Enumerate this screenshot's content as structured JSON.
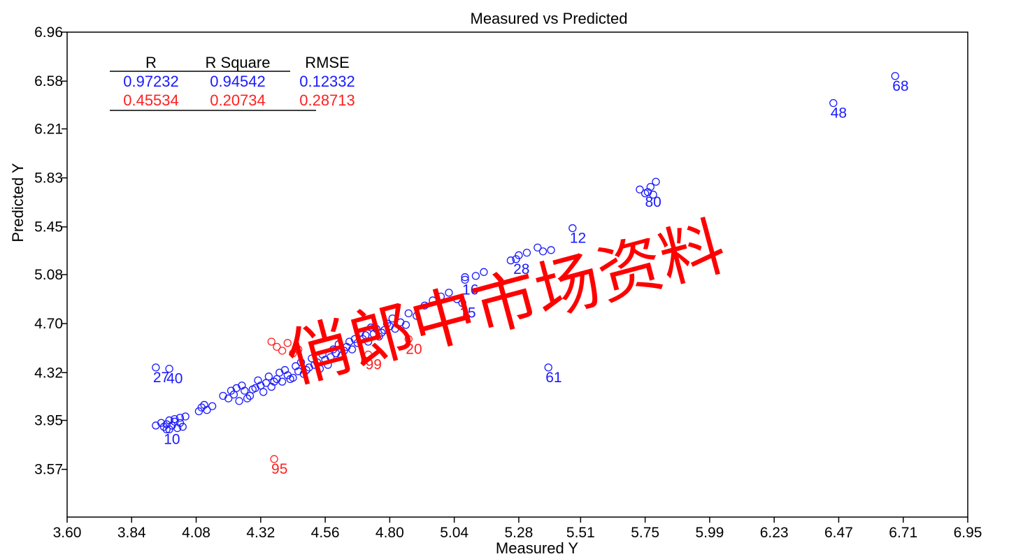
{
  "chart_data": {
    "type": "scatter",
    "title": "Measured vs Predicted",
    "xlabel": "Measured Y",
    "ylabel": "Predicted Y",
    "xlim": [
      3.6,
      6.95
    ],
    "ylim": [
      3.2,
      6.96
    ],
    "x_ticks": [
      "3.60",
      "3.84",
      "4.08",
      "4.32",
      "4.56",
      "4.80",
      "5.04",
      "5.28",
      "5.51",
      "5.75",
      "5.99",
      "6.23",
      "6.47",
      "6.71",
      "6.95"
    ],
    "y_ticks": [
      "6.96",
      "6.58",
      "6.21",
      "5.83",
      "5.45",
      "5.08",
      "4.70",
      "4.32",
      "3.95",
      "3.57"
    ],
    "stats_table": {
      "headers": [
        "R",
        "R Square",
        "RMSE"
      ],
      "rows": [
        {
          "values": [
            "0.97232",
            "0.94542",
            "0.12332"
          ],
          "color": "#1a1aff"
        },
        {
          "values": [
            "0.45534",
            "0.20734",
            "0.28713"
          ],
          "color": "#ff2020"
        }
      ]
    },
    "series": [
      {
        "color": "#1a1aff",
        "labeled_points": [
          {
            "label": "68",
            "x": 6.68,
            "y": 6.62
          },
          {
            "label": "48",
            "x": 6.45,
            "y": 6.41
          },
          {
            "label": "61",
            "x": 5.39,
            "y": 4.36
          },
          {
            "label": "27",
            "x": 3.93,
            "y": 4.36
          },
          {
            "label": "40",
            "x": 3.98,
            "y": 4.35
          },
          {
            "label": "15",
            "x": 5.07,
            "y": 4.86
          },
          {
            "label": "12",
            "x": 5.48,
            "y": 5.44
          },
          {
            "label": "80",
            "x": 5.76,
            "y": 5.72
          },
          {
            "label": "16",
            "x": 5.08,
            "y": 5.04
          },
          {
            "label": "28",
            "x": 5.27,
            "y": 5.2
          },
          {
            "label": "10",
            "x": 3.97,
            "y": 3.88
          }
        ],
        "points": [
          [
            3.93,
            3.91
          ],
          [
            3.95,
            3.93
          ],
          [
            3.96,
            3.9
          ],
          [
            3.97,
            3.92
          ],
          [
            3.98,
            3.95
          ],
          [
            3.99,
            3.91
          ],
          [
            4.0,
            3.96
          ],
          [
            4.01,
            3.89
          ],
          [
            4.02,
            3.93
          ],
          [
            4.03,
            3.9
          ],
          [
            4.04,
            3.98
          ],
          [
            3.98,
            3.88
          ],
          [
            4.0,
            3.94
          ],
          [
            4.02,
            3.97
          ],
          [
            4.09,
            4.02
          ],
          [
            4.1,
            4.05
          ],
          [
            4.12,
            4.03
          ],
          [
            4.14,
            4.06
          ],
          [
            4.11,
            4.07
          ],
          [
            4.2,
            4.12
          ],
          [
            4.22,
            4.15
          ],
          [
            4.24,
            4.1
          ],
          [
            4.26,
            4.18
          ],
          [
            4.28,
            4.14
          ],
          [
            4.3,
            4.2
          ],
          [
            4.32,
            4.22
          ],
          [
            4.33,
            4.17
          ],
          [
            4.34,
            4.24
          ],
          [
            4.36,
            4.21
          ],
          [
            4.38,
            4.27
          ],
          [
            4.4,
            4.25
          ],
          [
            4.42,
            4.3
          ],
          [
            4.44,
            4.28
          ],
          [
            4.46,
            4.33
          ],
          [
            4.48,
            4.31
          ],
          [
            4.5,
            4.36
          ],
          [
            4.52,
            4.38
          ],
          [
            4.54,
            4.35
          ],
          [
            4.56,
            4.42
          ],
          [
            4.58,
            4.44
          ],
          [
            4.6,
            4.47
          ],
          [
            4.62,
            4.45
          ],
          [
            4.64,
            4.52
          ],
          [
            4.66,
            4.5
          ],
          [
            4.68,
            4.55
          ],
          [
            4.7,
            4.58
          ],
          [
            4.72,
            4.56
          ],
          [
            4.74,
            4.62
          ],
          [
            4.76,
            4.6
          ],
          [
            4.78,
            4.65
          ],
          [
            4.8,
            4.68
          ],
          [
            4.82,
            4.66
          ],
          [
            4.84,
            4.71
          ],
          [
            4.86,
            4.69
          ],
          [
            4.25,
            4.22
          ],
          [
            4.29,
            4.19
          ],
          [
            4.31,
            4.26
          ],
          [
            4.35,
            4.29
          ],
          [
            4.37,
            4.25
          ],
          [
            4.41,
            4.34
          ],
          [
            4.43,
            4.27
          ],
          [
            4.45,
            4.37
          ],
          [
            4.47,
            4.4
          ],
          [
            4.49,
            4.34
          ],
          [
            4.51,
            4.43
          ],
          [
            4.55,
            4.46
          ],
          [
            4.59,
            4.5
          ],
          [
            4.63,
            4.49
          ],
          [
            4.67,
            4.58
          ],
          [
            4.71,
            4.61
          ],
          [
            4.75,
            4.66
          ],
          [
            4.79,
            4.7
          ],
          [
            4.18,
            4.14
          ],
          [
            4.21,
            4.18
          ],
          [
            4.23,
            4.2
          ],
          [
            4.27,
            4.12
          ],
          [
            4.39,
            4.32
          ],
          [
            4.53,
            4.4
          ],
          [
            4.57,
            4.38
          ],
          [
            4.61,
            4.54
          ],
          [
            4.65,
            4.56
          ],
          [
            4.69,
            4.63
          ],
          [
            4.73,
            4.67
          ],
          [
            4.77,
            4.63
          ],
          [
            4.81,
            4.74
          ],
          [
            4.87,
            4.78
          ],
          [
            4.9,
            4.76
          ],
          [
            4.93,
            4.84
          ],
          [
            4.96,
            4.88
          ],
          [
            4.99,
            4.91
          ],
          [
            5.02,
            4.94
          ],
          [
            5.05,
            4.89
          ],
          [
            5.08,
            5.06
          ],
          [
            5.12,
            5.07
          ],
          [
            5.15,
            5.1
          ],
          [
            5.25,
            5.19
          ],
          [
            5.28,
            5.23
          ],
          [
            5.31,
            5.25
          ],
          [
            5.35,
            5.29
          ],
          [
            5.37,
            5.26
          ],
          [
            5.4,
            5.27
          ],
          [
            5.73,
            5.74
          ],
          [
            5.75,
            5.71
          ],
          [
            5.77,
            5.76
          ],
          [
            5.79,
            5.8
          ],
          [
            5.78,
            5.7
          ]
        ]
      },
      {
        "color": "#ff2020",
        "labeled_points": [
          {
            "label": "95",
            "x": 4.37,
            "y": 3.65
          },
          {
            "label": "99",
            "x": 4.72,
            "y": 4.46
          },
          {
            "label": "20",
            "x": 4.87,
            "y": 4.58
          }
        ],
        "points": [
          [
            4.36,
            4.56
          ],
          [
            4.38,
            4.52
          ],
          [
            4.4,
            4.49
          ],
          [
            4.42,
            4.55
          ],
          [
            4.44,
            4.47
          ],
          [
            4.46,
            4.5
          ]
        ]
      }
    ]
  },
  "watermark": {
    "text": "俏郎中市场资料",
    "color": "#ff0000"
  }
}
